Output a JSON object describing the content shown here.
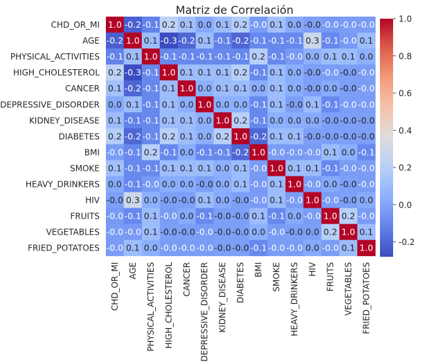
{
  "chart_data": {
    "type": "heatmap",
    "title": "Matriz de Correlación",
    "labels": [
      "CHD_OR_MI",
      "AGE",
      "PHYSICAL_ACTIVITIES",
      "HIGH_CHOLESTEROL",
      "CANCER",
      "DEPRESSIVE_DISORDER",
      "KIDNEY_DISEASE",
      "DIABETES",
      "BMI",
      "SMOKE",
      "HEAVY_DRINKERS",
      "HIV",
      "FRUITS",
      "VEGETABLES",
      "FRIED_POTATOES"
    ],
    "annotations": [
      [
        "1.0",
        "-0.2",
        "-0.1",
        "0.2",
        "0.1",
        "0.0",
        "0.1",
        "0.2",
        "-0.0",
        "0.1",
        "0.0",
        "-0.0",
        "-0.0",
        "-0.0",
        "-0.0"
      ],
      [
        "-0.2",
        "1.0",
        "0.1",
        "-0.3",
        "-0.2",
        "0.1",
        "-0.1",
        "-0.2",
        "-0.1",
        "-0.1",
        "-0.1",
        "0.3",
        "-0.1",
        "-0.0",
        "0.1"
      ],
      [
        "-0.1",
        "0.1",
        "1.0",
        "-0.1",
        "-0.1",
        "-0.1",
        "-0.1",
        "-0.1",
        "0.2",
        "-0.1",
        "-0.0",
        "0.0",
        "0.1",
        "0.1",
        "0.0"
      ],
      [
        "0.2",
        "-0.3",
        "-0.1",
        "1.0",
        "0.1",
        "0.1",
        "0.1",
        "0.2",
        "-0.1",
        "0.1",
        "0.0",
        "-0.0",
        "-0.0",
        "-0.0",
        "-0.0"
      ],
      [
        "0.1",
        "-0.2",
        "-0.1",
        "0.1",
        "1.0",
        "0.0",
        "0.1",
        "0.1",
        "0.0",
        "0.1",
        "0.0",
        "-0.0",
        "0.0",
        "-0.0",
        "-0.0"
      ],
      [
        "0.0",
        "0.1",
        "-0.1",
        "0.1",
        "0.0",
        "1.0",
        "0.0",
        "0.0",
        "-0.1",
        "0.1",
        "-0.0",
        "0.1",
        "-0.1",
        "-0.0",
        "-0.0"
      ],
      [
        "0.1",
        "-0.1",
        "-0.1",
        "0.1",
        "0.1",
        "0.0",
        "1.0",
        "0.2",
        "-0.1",
        "0.0",
        "0.0",
        "0.0",
        "-0.0",
        "-0.0",
        "-0.0"
      ],
      [
        "0.2",
        "-0.2",
        "-0.1",
        "0.2",
        "0.1",
        "0.0",
        "0.2",
        "1.0",
        "-0.2",
        "0.1",
        "0.1",
        "-0.0",
        "-0.0",
        "-0.0",
        "-0.0"
      ],
      [
        "-0.0",
        "-0.1",
        "0.2",
        "-0.1",
        "0.0",
        "-0.1",
        "-0.1",
        "-0.2",
        "1.0",
        "-0.0",
        "-0.0",
        "-0.0",
        "0.1",
        "0.0",
        "-0.1"
      ],
      [
        "0.1",
        "-0.1",
        "-0.1",
        "0.1",
        "0.1",
        "0.1",
        "0.0",
        "0.1",
        "-0.0",
        "1.0",
        "0.1",
        "0.1",
        "-0.1",
        "-0.0",
        "-0.0"
      ],
      [
        "0.0",
        "-0.1",
        "-0.0",
        "0.0",
        "0.0",
        "-0.0",
        "0.0",
        "0.1",
        "-0.0",
        "0.1",
        "1.0",
        "-0.0",
        "0.0",
        "-0.0",
        "-0.0"
      ],
      [
        "-0.0",
        "0.3",
        "0.0",
        "-0.0",
        "-0.0",
        "0.1",
        "0.0",
        "-0.0",
        "-0.0",
        "0.1",
        "-0.0",
        "1.0",
        "-0.0",
        "-0.0",
        "0.0"
      ],
      [
        "-0.0",
        "-0.1",
        "0.1",
        "-0.0",
        "0.0",
        "-0.1",
        "-0.0",
        "-0.0",
        "0.1",
        "-0.1",
        "0.0",
        "-0.0",
        "1.0",
        "0.2",
        "-0.0"
      ],
      [
        "-0.0",
        "-0.0",
        "0.1",
        "-0.0",
        "-0.0",
        "-0.0",
        "-0.0",
        "-0.0",
        "0.0",
        "-0.0",
        "-0.0",
        "0.0",
        "0.2",
        "1.0",
        "0.1"
      ],
      [
        "-0.0",
        "0.1",
        "0.0",
        "-0.0",
        "-0.0",
        "-0.0",
        "-0.0",
        "-0.0",
        "-0.1",
        "-0.0",
        "-0.0",
        "0.0",
        "-0.0",
        "0.1",
        "1.0"
      ]
    ],
    "values": [
      [
        1.0,
        -0.22,
        -0.12,
        0.22,
        0.12,
        0.02,
        0.1,
        0.18,
        -0.03,
        0.12,
        0.02,
        -0.02,
        -0.04,
        -0.03,
        -0.03
      ],
      [
        -0.22,
        1.0,
        0.1,
        -0.28,
        -0.2,
        0.1,
        -0.12,
        -0.2,
        -0.1,
        -0.1,
        -0.1,
        0.28,
        -0.1,
        -0.04,
        0.1
      ],
      [
        -0.12,
        0.1,
        1.0,
        -0.1,
        -0.1,
        -0.1,
        -0.1,
        -0.1,
        0.2,
        -0.1,
        -0.04,
        0.04,
        0.1,
        0.1,
        0.04
      ],
      [
        0.22,
        -0.28,
        -0.1,
        1.0,
        0.1,
        0.1,
        0.1,
        0.2,
        -0.1,
        0.1,
        0.03,
        -0.02,
        -0.03,
        -0.02,
        -0.03
      ],
      [
        0.12,
        -0.2,
        -0.1,
        0.1,
        1.0,
        0.04,
        0.1,
        0.1,
        0.03,
        0.1,
        0.03,
        -0.02,
        0.02,
        -0.02,
        -0.03
      ],
      [
        0.02,
        0.1,
        -0.1,
        0.1,
        0.04,
        1.0,
        0.04,
        0.04,
        -0.1,
        0.1,
        -0.02,
        0.1,
        -0.1,
        -0.03,
        -0.03
      ],
      [
        0.1,
        -0.12,
        -0.1,
        0.1,
        0.1,
        0.04,
        1.0,
        0.2,
        -0.1,
        0.04,
        0.03,
        0.02,
        -0.02,
        -0.02,
        -0.02
      ],
      [
        0.18,
        -0.2,
        -0.1,
        0.2,
        0.1,
        0.04,
        0.2,
        1.0,
        -0.2,
        0.1,
        0.1,
        -0.02,
        -0.02,
        -0.02,
        -0.02
      ],
      [
        -0.03,
        -0.1,
        0.2,
        -0.1,
        0.03,
        -0.1,
        -0.1,
        -0.2,
        1.0,
        -0.03,
        -0.04,
        -0.03,
        0.1,
        0.04,
        -0.1
      ],
      [
        0.12,
        -0.1,
        -0.1,
        0.1,
        0.1,
        0.1,
        0.04,
        0.1,
        -0.03,
        1.0,
        0.1,
        0.1,
        -0.1,
        -0.03,
        -0.03
      ],
      [
        0.02,
        -0.1,
        -0.04,
        0.03,
        0.03,
        -0.02,
        0.03,
        0.1,
        -0.04,
        0.1,
        1.0,
        -0.03,
        0.02,
        -0.02,
        -0.03
      ],
      [
        -0.02,
        0.28,
        0.04,
        -0.02,
        -0.02,
        0.1,
        0.02,
        -0.02,
        -0.03,
        0.1,
        -0.03,
        1.0,
        -0.03,
        -0.02,
        0.02
      ],
      [
        -0.04,
        -0.1,
        0.1,
        -0.03,
        0.02,
        -0.1,
        -0.02,
        -0.02,
        0.1,
        -0.1,
        0.02,
        -0.03,
        1.0,
        0.2,
        -0.03
      ],
      [
        -0.03,
        -0.04,
        0.1,
        -0.02,
        -0.02,
        -0.03,
        -0.02,
        -0.02,
        0.04,
        -0.03,
        -0.02,
        -0.02,
        0.2,
        1.0,
        0.1
      ],
      [
        -0.03,
        0.1,
        0.04,
        -0.03,
        -0.03,
        -0.03,
        -0.02,
        -0.02,
        -0.1,
        -0.03,
        -0.03,
        0.02,
        -0.03,
        0.1,
        1.0
      ]
    ],
    "colorbar": {
      "colormap": "coolwarm",
      "min": -0.28,
      "max": 1.0,
      "ticks": [
        "-0.2",
        "0.0",
        "0.2",
        "0.4",
        "0.6",
        "0.8",
        "1.0"
      ],
      "tick_values": [
        -0.2,
        0.0,
        0.2,
        0.4,
        0.6,
        0.8,
        1.0
      ]
    },
    "xlabel": "",
    "ylabel": "",
    "grid": false,
    "legend": "colorbar-right"
  }
}
